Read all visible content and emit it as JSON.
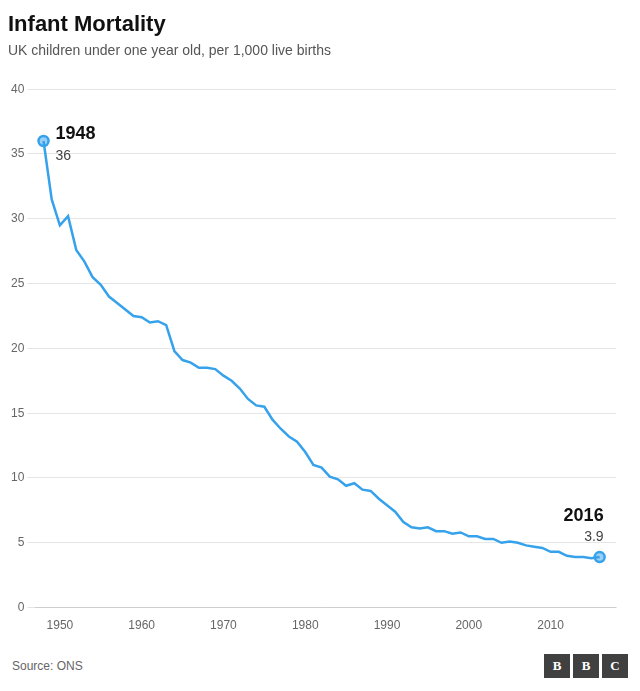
{
  "chart_data": {
    "type": "line",
    "title": "Infant Mortality",
    "subtitle": "UK children under one year old, per 1,000 live births",
    "source": "Source: ONS",
    "logo": "BBC",
    "x": [
      1948,
      1949,
      1950,
      1951,
      1952,
      1953,
      1954,
      1955,
      1956,
      1957,
      1958,
      1959,
      1960,
      1961,
      1962,
      1963,
      1964,
      1965,
      1966,
      1967,
      1968,
      1969,
      1970,
      1971,
      1972,
      1973,
      1974,
      1975,
      1976,
      1977,
      1978,
      1979,
      1980,
      1981,
      1982,
      1983,
      1984,
      1985,
      1986,
      1987,
      1988,
      1989,
      1990,
      1991,
      1992,
      1993,
      1994,
      1995,
      1996,
      1997,
      1998,
      1999,
      2000,
      2001,
      2002,
      2003,
      2004,
      2005,
      2006,
      2007,
      2008,
      2009,
      2010,
      2011,
      2012,
      2013,
      2014,
      2015,
      2016
    ],
    "values": [
      36.0,
      31.5,
      29.5,
      30.2,
      27.6,
      26.7,
      25.5,
      24.9,
      24.0,
      23.5,
      23.0,
      22.5,
      22.4,
      22.0,
      22.1,
      21.8,
      19.8,
      19.1,
      18.9,
      18.5,
      18.5,
      18.4,
      17.9,
      17.5,
      16.9,
      16.1,
      15.6,
      15.5,
      14.5,
      13.8,
      13.2,
      12.8,
      12.0,
      11.0,
      10.8,
      10.1,
      9.9,
      9.4,
      9.6,
      9.1,
      9.0,
      8.4,
      7.9,
      7.4,
      6.6,
      6.2,
      6.1,
      6.2,
      5.9,
      5.9,
      5.7,
      5.8,
      5.5,
      5.5,
      5.3,
      5.3,
      5.0,
      5.1,
      5.0,
      4.8,
      4.7,
      4.6,
      4.3,
      4.3,
      4.0,
      3.9,
      3.9,
      3.8,
      3.9
    ],
    "annotations": [
      {
        "x": 1948,
        "y": 36.0,
        "title": "1948",
        "text": "36"
      },
      {
        "x": 2016,
        "y": 3.9,
        "title": "2016",
        "text": "3.9"
      }
    ],
    "xlim": [
      1947,
      2018
    ],
    "xticks": [
      1950,
      1960,
      1970,
      1980,
      1990,
      2000,
      2010
    ],
    "ylim": [
      0,
      40
    ],
    "yticks": [
      0,
      5,
      10,
      15,
      20,
      25,
      30,
      35,
      40
    ],
    "grid": true
  }
}
